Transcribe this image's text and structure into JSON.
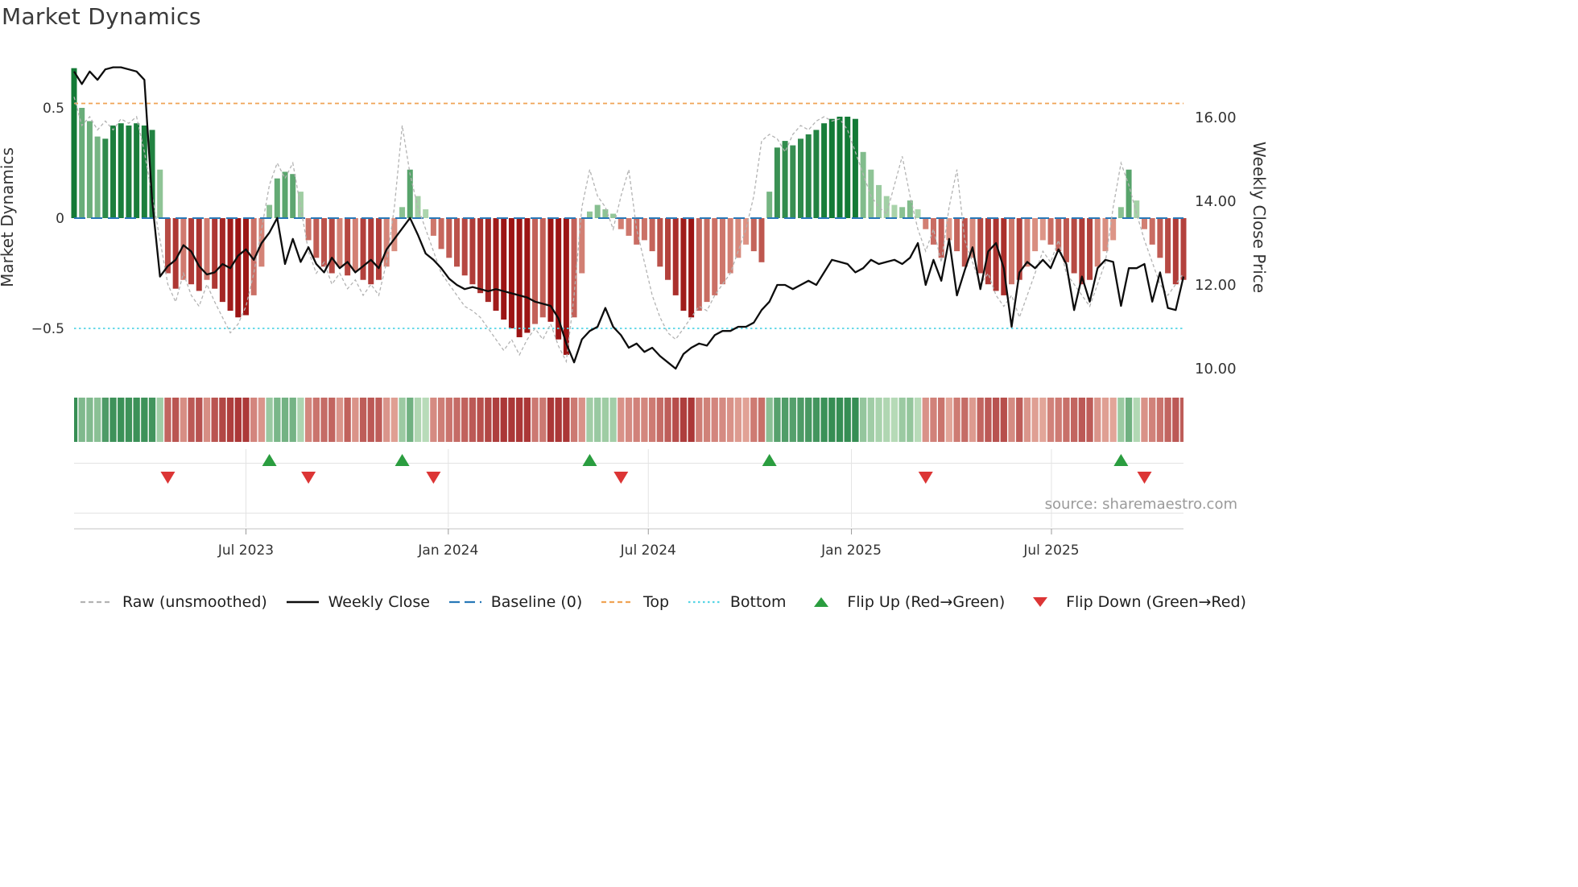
{
  "title": "Market Dynamics",
  "source_label": "source: sharemaestro.com",
  "axes": {
    "left": {
      "title": "Market Dynamics",
      "ticks": [
        {
          "label": "0.5",
          "value": 0.5
        },
        {
          "label": "0",
          "value": 0
        },
        {
          "label": "−0.5",
          "value": -0.5
        }
      ]
    },
    "right": {
      "title": "Weekly Close Price",
      "ticks": [
        {
          "label": "16.00",
          "value": 16
        },
        {
          "label": "14.00",
          "value": 14
        },
        {
          "label": "12.00",
          "value": 12
        },
        {
          "label": "10.00",
          "value": 10
        }
      ]
    },
    "x": {
      "ticks": [
        {
          "label": "Jul 2023",
          "week": 22
        },
        {
          "label": "Jan 2024",
          "week": 47.9
        },
        {
          "label": "Jul 2024",
          "week": 73.5
        },
        {
          "label": "Jan 2025",
          "week": 99.5
        },
        {
          "label": "Jul 2025",
          "week": 125.1
        }
      ]
    }
  },
  "legend": [
    {
      "id": "raw-unsmoothed",
      "label": "Raw (unsmoothed)",
      "swatch": "dash-line",
      "color_key": "raw"
    },
    {
      "id": "weekly-close",
      "label": "Weekly Close",
      "swatch": "solid-line",
      "color_key": "weekly_close"
    },
    {
      "id": "baseline",
      "label": "Baseline (0)",
      "swatch": "long-dash-line",
      "color_key": "baseline"
    },
    {
      "id": "top",
      "label": "Top",
      "swatch": "dash-line",
      "color_key": "top"
    },
    {
      "id": "bottom",
      "label": "Bottom",
      "swatch": "dot-line",
      "color_key": "bottom"
    },
    {
      "id": "flip-up",
      "label": "Flip Up (Red→Green)",
      "swatch": "triangle-up",
      "color_key": "flip_up"
    },
    {
      "id": "flip-down",
      "label": "Flip Down (Green→Red)",
      "swatch": "triangle-down",
      "color_key": "flip_down"
    }
  ],
  "colors": {
    "bar_green_dark": "#137a36",
    "bar_green_light": "#d2ecca",
    "bar_red_dark": "#9c1414",
    "bar_red_light": "#f3c0ad",
    "weekly_close": "#0d0d0d",
    "raw": "#b3b3b3",
    "baseline": "#2878b8",
    "top": "#f0a355",
    "bottom": "#55d5e5",
    "flip_up": "#2a9d3f",
    "flip_down": "#dc3535",
    "grid": "#e3e3e3",
    "spine": "#cfcfcf",
    "axis_text": "#333333",
    "source_text": "#9a9a9a"
  },
  "chart_data": {
    "type": "combo-bar-line-dual-axis-with-heatmap-and-flip-markers",
    "x_unit": "weekly bars, 143 weeks (week index 0–142)",
    "left_ylim": [
      -0.75,
      0.72
    ],
    "right_ylim": [
      9.6,
      17.4
    ],
    "thresholds": {
      "baseline": 0,
      "top": 0.52,
      "bottom": -0.5
    },
    "x_tick_labels": [
      "Jul 2023",
      "Jan 2024",
      "Jul 2024",
      "Jan 2025",
      "Jul 2025"
    ],
    "series": [
      {
        "name": "Market Dynamics",
        "type": "bar",
        "axis": "left",
        "values": [
          0.68,
          0.5,
          0.44,
          0.37,
          0.36,
          0.42,
          0.43,
          0.42,
          0.43,
          0.42,
          0.4,
          0.22,
          -0.25,
          -0.32,
          -0.28,
          -0.3,
          -0.33,
          -0.28,
          -0.32,
          -0.38,
          -0.42,
          -0.45,
          -0.44,
          -0.35,
          -0.22,
          0.06,
          0.18,
          0.21,
          0.2,
          0.12,
          -0.1,
          -0.18,
          -0.22,
          -0.25,
          -0.22,
          -0.26,
          -0.24,
          -0.28,
          -0.3,
          -0.28,
          -0.22,
          -0.15,
          0.05,
          0.22,
          0.1,
          0.04,
          -0.08,
          -0.14,
          -0.18,
          -0.22,
          -0.26,
          -0.3,
          -0.34,
          -0.38,
          -0.42,
          -0.46,
          -0.5,
          -0.54,
          -0.52,
          -0.48,
          -0.45,
          -0.47,
          -0.55,
          -0.62,
          -0.45,
          -0.25,
          0.03,
          0.06,
          0.04,
          0.02,
          -0.05,
          -0.08,
          -0.12,
          -0.1,
          -0.15,
          -0.22,
          -0.28,
          -0.35,
          -0.42,
          -0.45,
          -0.42,
          -0.38,
          -0.35,
          -0.3,
          -0.25,
          -0.18,
          -0.12,
          -0.15,
          -0.2,
          0.12,
          0.32,
          0.35,
          0.33,
          0.36,
          0.38,
          0.4,
          0.43,
          0.45,
          0.46,
          0.46,
          0.45,
          0.3,
          0.22,
          0.15,
          0.1,
          0.06,
          0.05,
          0.08,
          0.04,
          -0.05,
          -0.12,
          -0.18,
          -0.1,
          -0.15,
          -0.22,
          -0.18,
          -0.25,
          -0.3,
          -0.33,
          -0.35,
          -0.3,
          -0.28,
          -0.22,
          -0.15,
          -0.1,
          -0.12,
          -0.15,
          -0.2,
          -0.25,
          -0.3,
          -0.28,
          -0.22,
          -0.15,
          -0.1,
          0.05,
          0.22,
          0.08,
          -0.05,
          -0.12,
          -0.18,
          -0.25,
          -0.3,
          -0.28
        ]
      },
      {
        "name": "Raw (unsmoothed)",
        "type": "line",
        "style": "dashed",
        "axis": "left",
        "values": [
          0.55,
          0.42,
          0.46,
          0.4,
          0.44,
          0.4,
          0.45,
          0.43,
          0.46,
          0.3,
          0.1,
          -0.1,
          -0.3,
          -0.38,
          -0.25,
          -0.35,
          -0.4,
          -0.3,
          -0.38,
          -0.45,
          -0.52,
          -0.48,
          -0.4,
          -0.25,
          -0.05,
          0.15,
          0.25,
          0.18,
          0.25,
          0.05,
          -0.15,
          -0.25,
          -0.2,
          -0.3,
          -0.25,
          -0.32,
          -0.28,
          -0.35,
          -0.3,
          -0.35,
          -0.2,
          0.05,
          0.42,
          0.2,
          0.05,
          -0.05,
          -0.15,
          -0.25,
          -0.3,
          -0.35,
          -0.4,
          -0.42,
          -0.45,
          -0.5,
          -0.55,
          -0.6,
          -0.55,
          -0.62,
          -0.55,
          -0.5,
          -0.55,
          -0.48,
          -0.58,
          -0.65,
          -0.35,
          0.05,
          0.22,
          0.1,
          0.05,
          -0.05,
          0.1,
          0.22,
          -0.05,
          -0.2,
          -0.35,
          -0.45,
          -0.52,
          -0.55,
          -0.5,
          -0.45,
          -0.4,
          -0.42,
          -0.35,
          -0.3,
          -0.25,
          -0.15,
          -0.05,
          0.1,
          0.35,
          0.38,
          0.36,
          0.3,
          0.38,
          0.42,
          0.4,
          0.44,
          0.46,
          0.44,
          0.45,
          0.4,
          0.3,
          0.2,
          0.1,
          0.05,
          0.02,
          0.15,
          0.28,
          0.1,
          -0.05,
          -0.15,
          -0.05,
          -0.2,
          0.05,
          0.22,
          -0.1,
          -0.2,
          -0.3,
          -0.25,
          -0.35,
          -0.4,
          -0.35,
          -0.45,
          -0.35,
          -0.25,
          -0.15,
          -0.2,
          -0.1,
          -0.25,
          -0.3,
          -0.35,
          -0.4,
          -0.3,
          -0.2,
          0.05,
          0.25,
          0.15,
          0.02,
          -0.1,
          -0.2,
          -0.3,
          -0.35,
          -0.3,
          -0.25
        ]
      },
      {
        "name": "Weekly Close",
        "type": "line",
        "axis": "right",
        "values": [
          17.1,
          16.8,
          17.1,
          16.9,
          17.15,
          17.2,
          17.2,
          17.15,
          17.1,
          16.9,
          14.0,
          12.2,
          12.45,
          12.6,
          12.95,
          12.8,
          12.45,
          12.25,
          12.3,
          12.5,
          12.4,
          12.7,
          12.85,
          12.6,
          13.0,
          13.25,
          13.6,
          12.5,
          13.1,
          12.55,
          12.9,
          12.5,
          12.3,
          12.65,
          12.4,
          12.55,
          12.3,
          12.45,
          12.6,
          12.4,
          12.85,
          13.1,
          13.35,
          13.6,
          13.2,
          12.75,
          12.6,
          12.4,
          12.15,
          12.0,
          11.9,
          11.95,
          11.9,
          11.85,
          11.9,
          11.85,
          11.8,
          11.75,
          11.7,
          11.6,
          11.55,
          11.5,
          11.2,
          10.6,
          10.15,
          10.7,
          10.9,
          11.0,
          11.45,
          11.0,
          10.8,
          10.5,
          10.6,
          10.4,
          10.5,
          10.3,
          10.15,
          10.0,
          10.35,
          10.5,
          10.6,
          10.55,
          10.8,
          10.9,
          10.9,
          11.0,
          11.0,
          11.1,
          11.4,
          11.6,
          12.0,
          12.0,
          11.9,
          12.0,
          12.1,
          12.0,
          12.3,
          12.6,
          12.55,
          12.5,
          12.3,
          12.4,
          12.6,
          12.5,
          12.55,
          12.6,
          12.5,
          12.65,
          13.0,
          12.0,
          12.6,
          12.1,
          13.1,
          11.75,
          12.35,
          12.9,
          11.9,
          12.8,
          13.0,
          12.4,
          11.0,
          12.3,
          12.55,
          12.4,
          12.6,
          12.4,
          12.85,
          12.5,
          11.4,
          12.2,
          11.6,
          12.4,
          12.6,
          12.55,
          11.5,
          12.4,
          12.4,
          12.5,
          11.6,
          12.3,
          11.45,
          11.4,
          12.2
        ]
      }
    ],
    "heatmap": {
      "desc": "color strip below main plot mirroring bar values (green positive / red negative, intensity by magnitude)"
    },
    "flip_up_weeks": [
      25,
      42,
      66,
      89,
      134
    ],
    "flip_down_weeks": [
      12,
      30,
      46,
      70,
      109,
      137
    ]
  }
}
